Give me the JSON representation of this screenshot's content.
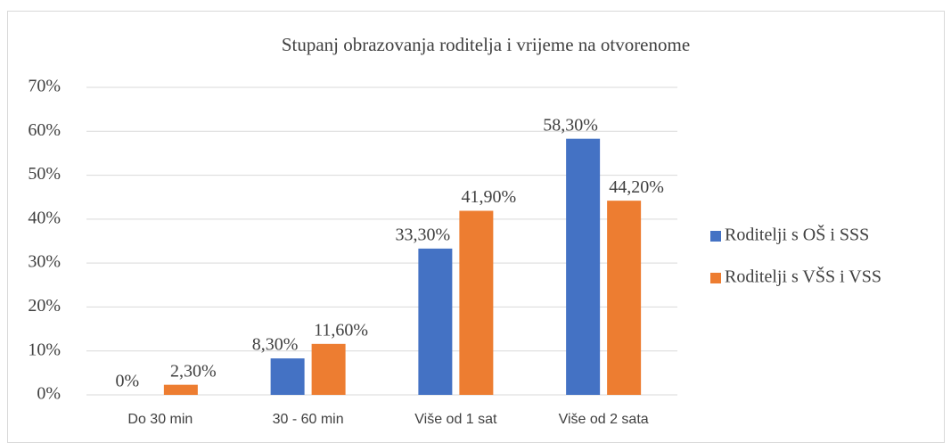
{
  "chart_data": {
    "type": "bar",
    "title": "Stupanj obrazovanja roditelja i vrijeme na otvorenome",
    "categories": [
      "Do 30 min",
      "30 - 60 min",
      "Više od 1 sat",
      "Više od 2 sata"
    ],
    "series": [
      {
        "name": "Roditelji s OŠ i SSS",
        "color": "#4472c4",
        "values": [
          0,
          8.3,
          33.3,
          58.3
        ],
        "value_labels": [
          "0%",
          "8,30%",
          "33,30%",
          "58,30%"
        ]
      },
      {
        "name": "Roditelji s VŠS i VSS",
        "color": "#ed7d31",
        "values": [
          2.3,
          11.6,
          41.9,
          44.2
        ],
        "value_labels": [
          "2,30%",
          "11,60%",
          "41,90%",
          "44,20%"
        ]
      }
    ],
    "ylim": [
      0,
      70
    ],
    "yticks": [
      {
        "value": 0,
        "label": "0%"
      },
      {
        "value": 10,
        "label": "10%"
      },
      {
        "value": 20,
        "label": "20%"
      },
      {
        "value": 30,
        "label": "30%"
      },
      {
        "value": 40,
        "label": "40%"
      },
      {
        "value": 50,
        "label": "50%"
      },
      {
        "value": 60,
        "label": "60%"
      },
      {
        "value": 70,
        "label": "70%"
      }
    ],
    "grid": true,
    "legend": "right"
  }
}
